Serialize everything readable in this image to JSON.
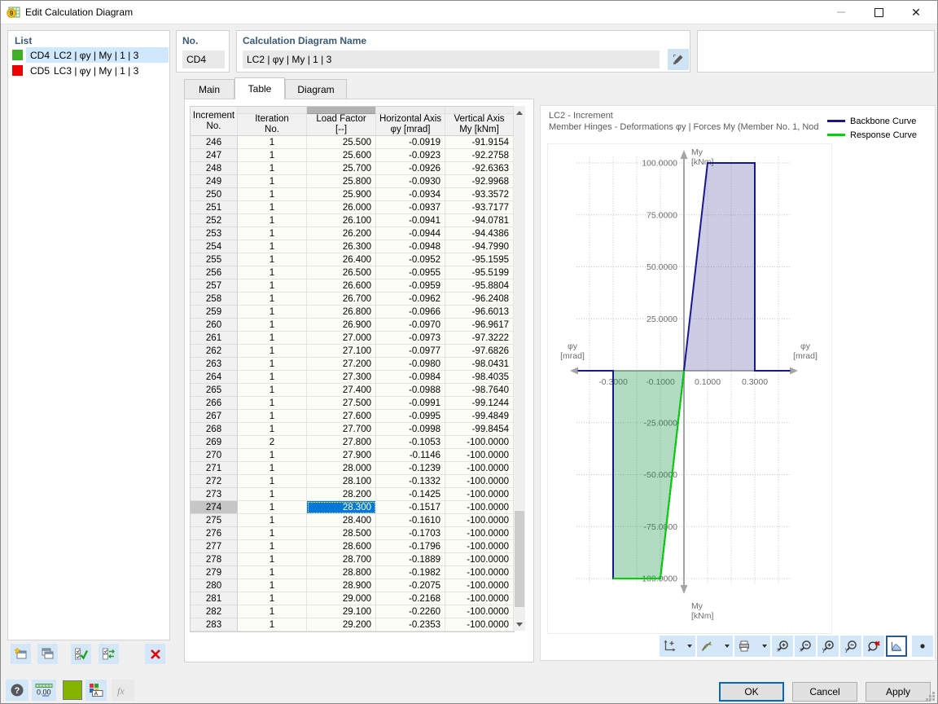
{
  "window": {
    "title": "Edit Calculation Diagram"
  },
  "list": {
    "title": "List",
    "items": [
      {
        "id": "CD4",
        "label": "LC2 | φy | My | 1 | 3",
        "color": "#3faf25",
        "selected": true
      },
      {
        "id": "CD5",
        "label": "LC3 | φy | My | 1 | 3",
        "color": "#ee0000",
        "selected": false
      }
    ]
  },
  "fields": {
    "no_label": "No.",
    "no_value": "CD4",
    "name_label": "Calculation Diagram Name",
    "name_value": "LC2 | φy | My | 1 | 3"
  },
  "tabs": [
    {
      "label": "Main",
      "active": false
    },
    {
      "label": "Table",
      "active": true
    },
    {
      "label": "Diagram",
      "active": false
    }
  ],
  "table": {
    "columns": [
      [
        "Increment",
        "No."
      ],
      [
        "Iteration",
        "No."
      ],
      [
        "Load Factor",
        "[--]"
      ],
      [
        "Horizontal Axis",
        "φy [mrad]"
      ],
      [
        "Vertical Axis",
        "My [kNm]"
      ]
    ],
    "selected": {
      "row": "274",
      "column_index": 2
    },
    "rows": [
      [
        "246",
        "1",
        "25.500",
        "-0.0919",
        "-91.9154"
      ],
      [
        "247",
        "1",
        "25.600",
        "-0.0923",
        "-92.2758"
      ],
      [
        "248",
        "1",
        "25.700",
        "-0.0926",
        "-92.6363"
      ],
      [
        "249",
        "1",
        "25.800",
        "-0.0930",
        "-92.9968"
      ],
      [
        "250",
        "1",
        "25.900",
        "-0.0934",
        "-93.3572"
      ],
      [
        "251",
        "1",
        "26.000",
        "-0.0937",
        "-93.7177"
      ],
      [
        "252",
        "1",
        "26.100",
        "-0.0941",
        "-94.0781"
      ],
      [
        "253",
        "1",
        "26.200",
        "-0.0944",
        "-94.4386"
      ],
      [
        "254",
        "1",
        "26.300",
        "-0.0948",
        "-94.7990"
      ],
      [
        "255",
        "1",
        "26.400",
        "-0.0952",
        "-95.1595"
      ],
      [
        "256",
        "1",
        "26.500",
        "-0.0955",
        "-95.5199"
      ],
      [
        "257",
        "1",
        "26.600",
        "-0.0959",
        "-95.8804"
      ],
      [
        "258",
        "1",
        "26.700",
        "-0.0962",
        "-96.2408"
      ],
      [
        "259",
        "1",
        "26.800",
        "-0.0966",
        "-96.6013"
      ],
      [
        "260",
        "1",
        "26.900",
        "-0.0970",
        "-96.9617"
      ],
      [
        "261",
        "1",
        "27.000",
        "-0.0973",
        "-97.3222"
      ],
      [
        "262",
        "1",
        "27.100",
        "-0.0977",
        "-97.6826"
      ],
      [
        "263",
        "1",
        "27.200",
        "-0.0980",
        "-98.0431"
      ],
      [
        "264",
        "1",
        "27.300",
        "-0.0984",
        "-98.4035"
      ],
      [
        "265",
        "1",
        "27.400",
        "-0.0988",
        "-98.7640"
      ],
      [
        "266",
        "1",
        "27.500",
        "-0.0991",
        "-99.1244"
      ],
      [
        "267",
        "1",
        "27.600",
        "-0.0995",
        "-99.4849"
      ],
      [
        "268",
        "1",
        "27.700",
        "-0.0998",
        "-99.8454"
      ],
      [
        "269",
        "2",
        "27.800",
        "-0.1053",
        "-100.0000"
      ],
      [
        "270",
        "1",
        "27.900",
        "-0.1146",
        "-100.0000"
      ],
      [
        "271",
        "1",
        "28.000",
        "-0.1239",
        "-100.0000"
      ],
      [
        "272",
        "1",
        "28.100",
        "-0.1332",
        "-100.0000"
      ],
      [
        "273",
        "1",
        "28.200",
        "-0.1425",
        "-100.0000"
      ],
      [
        "274",
        "1",
        "28.300",
        "-0.1517",
        "-100.0000"
      ],
      [
        "275",
        "1",
        "28.400",
        "-0.1610",
        "-100.0000"
      ],
      [
        "276",
        "1",
        "28.500",
        "-0.1703",
        "-100.0000"
      ],
      [
        "277",
        "1",
        "28.600",
        "-0.1796",
        "-100.0000"
      ],
      [
        "278",
        "1",
        "28.700",
        "-0.1889",
        "-100.0000"
      ],
      [
        "279",
        "1",
        "28.800",
        "-0.1982",
        "-100.0000"
      ],
      [
        "280",
        "1",
        "28.900",
        "-0.2075",
        "-100.0000"
      ],
      [
        "281",
        "1",
        "29.000",
        "-0.2168",
        "-100.0000"
      ],
      [
        "282",
        "1",
        "29.100",
        "-0.2260",
        "-100.0000"
      ],
      [
        "283",
        "1",
        "29.200",
        "-0.2353",
        "-100.0000"
      ]
    ]
  },
  "chart_data": {
    "type": "line",
    "title": "LC2 - Increment",
    "subtitle": "Member Hinges - Deformations φy | Forces My (Member No. 1, Nod",
    "xlabel": "φy [mrad]",
    "ylabel": "My [kNm]",
    "xlim": [
      -0.47,
      0.47
    ],
    "ylim": [
      -110,
      110
    ],
    "grid": "dotted",
    "legend_position": "top-right",
    "x_ticks": [
      {
        "v": -0.3,
        "label": "-0.3000"
      },
      {
        "v": -0.1,
        "label": "-0.1000"
      },
      {
        "v": 0.1,
        "label": "0.1000"
      },
      {
        "v": 0.3,
        "label": "0.3000"
      }
    ],
    "y_ticks": [
      {
        "v": 100,
        "label": "100.0000"
      },
      {
        "v": 75,
        "label": "75.0000"
      },
      {
        "v": 50,
        "label": "50.0000"
      },
      {
        "v": 25,
        "label": "25.0000"
      },
      {
        "v": -25,
        "label": "-25.0000"
      },
      {
        "v": -50,
        "label": "-50.0000"
      },
      {
        "v": -75,
        "label": "-75.0000"
      },
      {
        "v": -100,
        "label": "-100.0000"
      }
    ],
    "grid_x": [
      -0.4,
      -0.3,
      -0.2,
      -0.1,
      0.1,
      0.2,
      0.3,
      0.4
    ],
    "grid_y": [
      100,
      75,
      50,
      25,
      -25,
      -50,
      -75,
      -100
    ],
    "axis_labels": {
      "top": [
        "My",
        "[kNm]"
      ],
      "bottom": [
        "My",
        "[kNm]"
      ],
      "left": [
        "φy",
        "[mrad]"
      ],
      "right": [
        "φy",
        "[mrad]"
      ]
    },
    "series": [
      {
        "name": "Backbone Curve",
        "color": "#18188c",
        "fill_color": "rgba(100,100,175,0.33)",
        "points": [
          [
            -0.45,
            0
          ],
          [
            -0.3,
            0
          ],
          [
            -0.3,
            -100
          ],
          [
            -0.1,
            -100
          ],
          [
            0,
            0
          ],
          [
            0.1,
            100
          ],
          [
            0.3,
            100
          ],
          [
            0.3,
            0
          ],
          [
            0.45,
            0
          ]
        ],
        "fill_polygon": [
          [
            0,
            0
          ],
          [
            0.1,
            100
          ],
          [
            0.3,
            100
          ],
          [
            0.3,
            0
          ]
        ]
      },
      {
        "name": "Response Curve",
        "color": "#00d300",
        "fill_color": "rgba(20,150,70,0.33)",
        "points": [
          [
            0,
            0
          ],
          [
            -0.0998,
            -99.8454
          ],
          [
            -0.1053,
            -100
          ],
          [
            -0.2353,
            -100
          ],
          [
            -0.3,
            -100
          ]
        ],
        "fill_polygon": [
          [
            0,
            0
          ],
          [
            -0.0998,
            -99.8454
          ],
          [
            -0.1053,
            -100
          ],
          [
            -0.3,
            -100
          ],
          [
            -0.3,
            0
          ]
        ]
      }
    ]
  },
  "buttons": {
    "ok": "OK",
    "cancel": "Cancel",
    "apply": "Apply"
  },
  "icons": {
    "app-icon": "calculation-diagram",
    "minimize-icon": "—",
    "maximize-icon": "▢",
    "close-icon": "✕",
    "edit-name-icon": "pencil",
    "new-diagram-icon": "window-star",
    "copy-diagram-icon": "window-copy",
    "select-all-icon": "double-check",
    "invert-selection-icon": "check-swap",
    "delete-icon": "✕",
    "export-table-icon": "spreadsheet",
    "help-icon": "?",
    "units-icon": "0.00",
    "color-swatch": "#84b400",
    "display-properties-icon": "colors-A",
    "function-icon": "fx",
    "dropdown-icon": "▾",
    "point-icon": "•",
    "chart_toolbar": [
      "new-diagram-axes",
      "curves",
      "print",
      "zoom-in-x",
      "zoom-out-x",
      "zoom-in-y",
      "zoom-out-y",
      "zoom-reset",
      "filled-diagram",
      "point"
    ]
  }
}
